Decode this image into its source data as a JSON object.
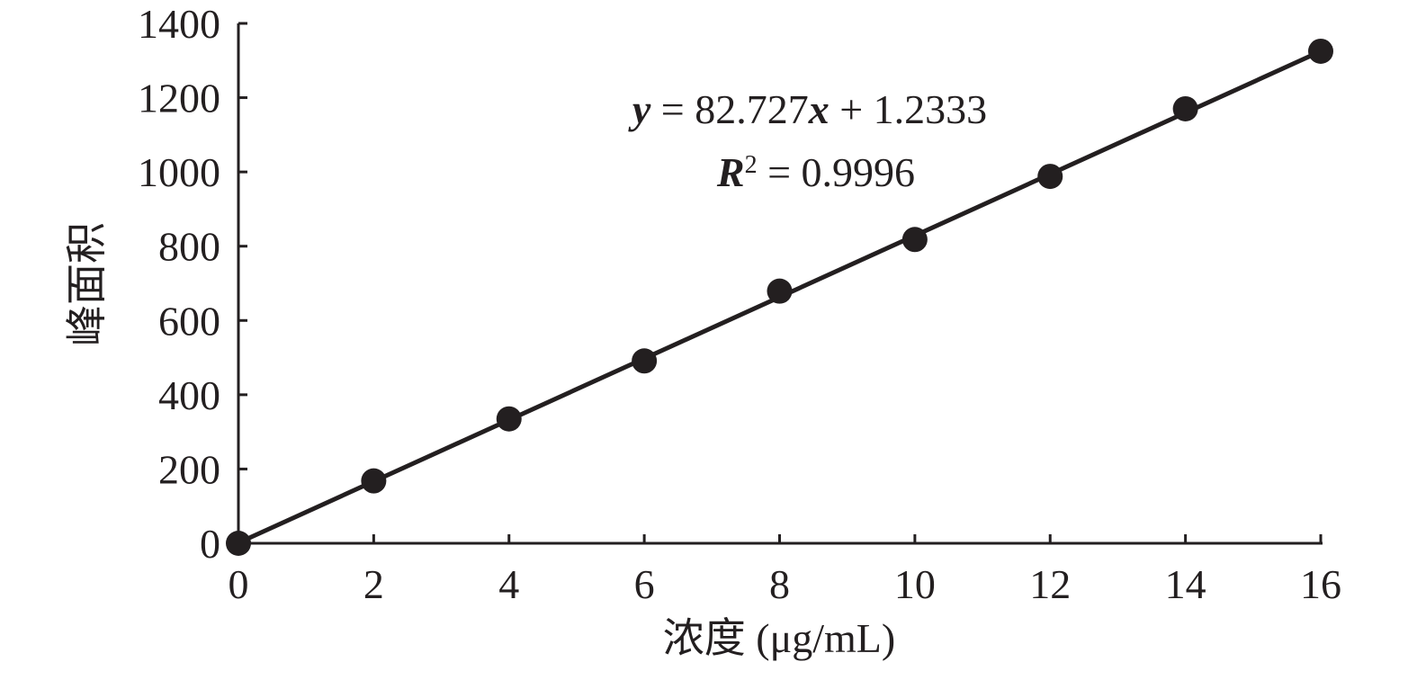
{
  "chart_data": {
    "type": "scatter",
    "title": "",
    "xlabel": "浓度 (μg/mL)",
    "ylabel": "峰面积",
    "xlim": [
      0,
      16
    ],
    "ylim": [
      0,
      1400
    ],
    "xticks": [
      0,
      2,
      4,
      6,
      8,
      10,
      12,
      14,
      16
    ],
    "yticks": [
      0,
      200,
      400,
      600,
      800,
      1000,
      1200,
      1400
    ],
    "grid": false,
    "legend": "none",
    "series": [
      {
        "x": [
          0,
          2,
          4,
          6,
          8,
          10,
          12,
          14,
          16
        ],
        "y": [
          0,
          168,
          335,
          491,
          679,
          818,
          988,
          1170,
          1325
        ],
        "marker": "circle",
        "color": "#231f20"
      }
    ],
    "trendline": {
      "type": "linear",
      "slope": 82.727,
      "intercept": 1.2333,
      "color": "#231f20"
    },
    "annotations": {
      "equation": {
        "y_var": "y",
        "middle": " = 82.727",
        "x_var": "x",
        "rest": " + 1.2333"
      },
      "r2": {
        "r_var": "R",
        "sup": "2",
        "rest": " = 0.9996"
      }
    }
  }
}
